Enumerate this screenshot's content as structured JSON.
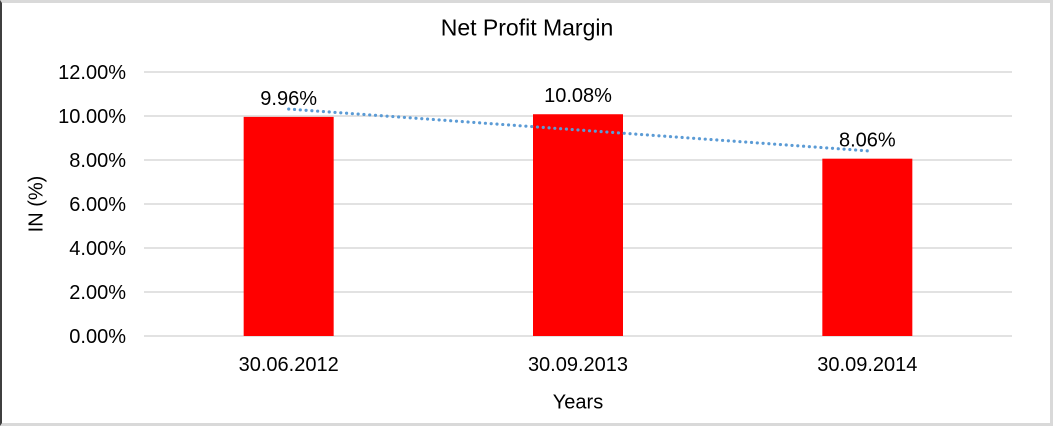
{
  "frame": {
    "background": "#FFFFFF",
    "border_left_color": "#3F3F3F",
    "border_light_color": "#D9D9D9"
  },
  "chart_data": {
    "type": "bar",
    "title": "Net Profit Margin",
    "categories": [
      "30.06.2012",
      "30.09.2013",
      "30.09.2014"
    ],
    "values": [
      9.96,
      10.08,
      8.06
    ],
    "data_labels": [
      "9.96%",
      "10.08%",
      "8.06%"
    ],
    "xlabel": "Years",
    "ylabel": "IN (%)",
    "ylim": [
      0,
      12
    ],
    "ytick_step": 2,
    "ytick_labels": [
      "0.00%",
      "2.00%",
      "4.00%",
      "6.00%",
      "8.00%",
      "10.00%",
      "12.00%"
    ],
    "grid": true,
    "legend_position": "none",
    "bar_color": "#FF0000",
    "gridline_color": "#D9D9D9",
    "text_color": "#000000",
    "trendline": {
      "type": "linear",
      "style": "dotted",
      "color": "#5B9BD5"
    }
  }
}
